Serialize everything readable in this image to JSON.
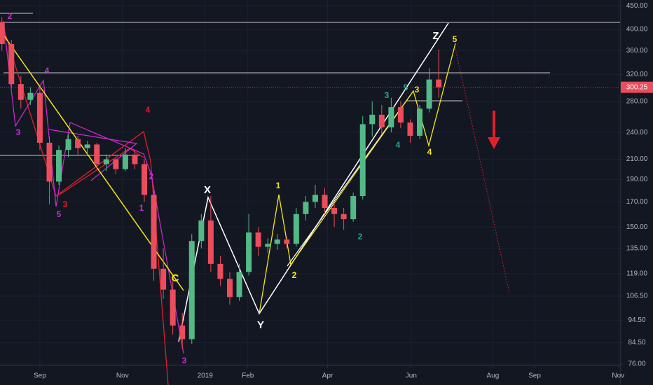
{
  "chart_data": {
    "type": "candlestick",
    "log_scale": true,
    "grid": true,
    "up_color": "#53b987",
    "down_color": "#eb4d5c",
    "x": [
      -4,
      -3,
      -2,
      -1,
      0,
      1,
      2,
      3,
      4,
      5,
      6,
      7,
      8,
      9,
      10,
      11,
      12,
      13,
      14,
      15,
      16,
      17,
      18,
      19,
      20,
      21,
      22,
      23,
      24,
      25,
      26,
      27,
      28,
      29,
      30,
      31,
      32,
      33,
      34,
      35,
      36,
      37,
      38,
      39,
      40,
      41,
      42
    ],
    "open": [
      415,
      372,
      305,
      282,
      292,
      228,
      188,
      220,
      232,
      222,
      226,
      205,
      210,
      200,
      215,
      205,
      176,
      122,
      110,
      92,
      86,
      140,
      155,
      125,
      116,
      106,
      120,
      146,
      136,
      138,
      141,
      138,
      160,
      170,
      176,
      165,
      160,
      156,
      175,
      250,
      262,
      246,
      272,
      252,
      236,
      270,
      312
    ],
    "high": [
      425,
      380,
      318,
      300,
      300,
      235,
      225,
      238,
      236,
      230,
      228,
      215,
      212,
      222,
      220,
      210,
      180,
      135,
      115,
      98,
      145,
      160,
      175,
      130,
      120,
      125,
      160,
      150,
      142,
      145,
      143,
      165,
      175,
      185,
      182,
      168,
      165,
      178,
      260,
      280,
      275,
      285,
      280,
      256,
      275,
      330,
      362
    ],
    "low": [
      360,
      298,
      270,
      275,
      220,
      168,
      185,
      212,
      215,
      215,
      200,
      198,
      195,
      198,
      200,
      170,
      115,
      105,
      88,
      82,
      84,
      135,
      120,
      112,
      102,
      104,
      118,
      130,
      132,
      134,
      135,
      136,
      155,
      165,
      160,
      150,
      148,
      154,
      172,
      235,
      238,
      240,
      245,
      228,
      232,
      265,
      285
    ],
    "close": [
      372,
      305,
      282,
      292,
      228,
      188,
      220,
      232,
      222,
      226,
      205,
      210,
      200,
      215,
      205,
      176,
      122,
      110,
      92,
      86,
      140,
      155,
      125,
      116,
      106,
      120,
      146,
      136,
      138,
      141,
      138,
      160,
      170,
      176,
      165,
      160,
      156,
      175,
      250,
      262,
      246,
      272,
      252,
      236,
      270,
      312,
      300.25
    ],
    "last_price": 300.25,
    "xlim": [
      -4.2,
      61.1
    ],
    "xticks": [
      {
        "value": 0,
        "label": "Sep"
      },
      {
        "value": 8.7,
        "label": "Nov"
      },
      {
        "value": 17.4,
        "label": "2019"
      },
      {
        "value": 21.9,
        "label": "Feb"
      },
      {
        "value": 30.3,
        "label": "Apr"
      },
      {
        "value": 39.1,
        "label": "Jun"
      },
      {
        "value": 47.7,
        "label": "Aug"
      },
      {
        "value": 52.1,
        "label": "Sep"
      },
      {
        "value": 60.9,
        "label": "Nov"
      }
    ],
    "ylim": [
      75.5,
      463
    ],
    "yticks": [
      {
        "value": 76,
        "label": "76.00"
      },
      {
        "value": 84.5,
        "label": "84.50"
      },
      {
        "value": 94.5,
        "label": "94.50"
      },
      {
        "value": 106.5,
        "label": "106.50"
      },
      {
        "value": 119,
        "label": "119.00"
      },
      {
        "value": 135,
        "label": "135.00"
      },
      {
        "value": 150,
        "label": "150.00"
      },
      {
        "value": 170,
        "label": "170.00"
      },
      {
        "value": 190,
        "label": "190.00"
      },
      {
        "value": 210,
        "label": "210.00"
      },
      {
        "value": 240,
        "label": "240.00"
      },
      {
        "value": 280,
        "label": "280.00"
      },
      {
        "value": 320,
        "label": "320.00"
      },
      {
        "value": 360,
        "label": "360.00"
      },
      {
        "value": 400,
        "label": "400.00"
      },
      {
        "value": 450,
        "label": "450.00"
      }
    ],
    "annotations": [
      {
        "text": "2",
        "color": "#d12ad6"
      },
      {
        "text": "4",
        "color": "#d12ad6"
      },
      {
        "text": "3",
        "color": "#d12ad6"
      },
      {
        "text": "5",
        "color": "#d12ad6"
      },
      {
        "text": "3",
        "color": "#e0202a"
      },
      {
        "text": "4",
        "color": "#e0202a"
      },
      {
        "text": "2",
        "color": "#d12ad6"
      },
      {
        "text": "1",
        "color": "#d12ad6"
      },
      {
        "text": "C",
        "color": "#f5e616"
      },
      {
        "text": "3",
        "color": "#d12ad6"
      },
      {
        "text": "X",
        "color": "#ffffff"
      },
      {
        "text": "Y",
        "color": "#ffffff"
      },
      {
        "text": "1",
        "color": "#f5e616"
      },
      {
        "text": "2",
        "color": "#f5e616"
      },
      {
        "text": "2",
        "color": "#26a69a"
      },
      {
        "text": "3",
        "color": "#26a69a"
      },
      {
        "text": "4",
        "color": "#26a69a"
      },
      {
        "text": "5",
        "color": "#26a69a"
      },
      {
        "text": "3",
        "color": "#f5e616"
      },
      {
        "text": "4",
        "color": "#f5e616"
      },
      {
        "text": "Z",
        "color": "#ffffff"
      },
      {
        "text": "5",
        "color": "#f5e616"
      }
    ]
  }
}
